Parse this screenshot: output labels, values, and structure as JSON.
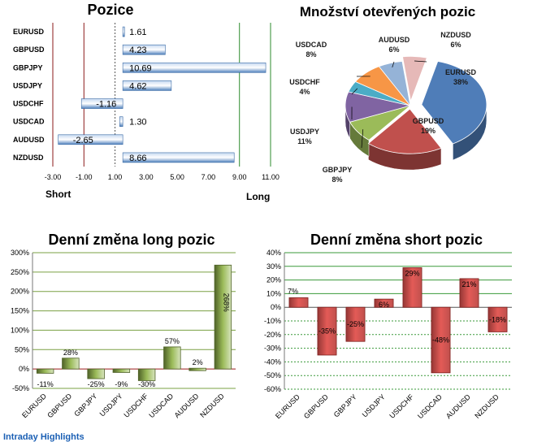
{
  "chart_data": [
    {
      "id": "pozice",
      "type": "bar",
      "orientation": "horizontal",
      "title": "Pozice",
      "categories": [
        "EURUSD",
        "GBPUSD",
        "GBPJPY",
        "USDJPY",
        "USDCHF",
        "USDCAD",
        "AUDUSD",
        "NZDUSD"
      ],
      "values": [
        1.61,
        4.23,
        10.69,
        4.62,
        -1.16,
        1.3,
        -2.65,
        8.66
      ],
      "value_labels": [
        "1.61",
        "4.23",
        "10.69",
        "4.62",
        "-1.16",
        "1.30",
        "-2.65",
        "8.66"
      ],
      "xticks": [
        -3,
        -1,
        1,
        3,
        5,
        7,
        9,
        11
      ],
      "xtick_labels": [
        "-3.00",
        "-1.00",
        "1.00",
        "3.00",
        "5.00",
        "7.00",
        "9.00",
        "11.00"
      ],
      "xlim": [
        -3,
        11
      ],
      "short_label": "Short",
      "long_label": "Long",
      "color": "#4f81bd"
    },
    {
      "id": "mnozstvi",
      "type": "pie",
      "title": "Množství otevřených pozic",
      "slices": [
        {
          "label": "EURUSD",
          "pct": "38%",
          "value": 38,
          "color": "#4f7db8"
        },
        {
          "label": "GBPUSD",
          "pct": "19%",
          "value": 19,
          "color": "#c0504d"
        },
        {
          "label": "GBPJPY",
          "pct": "8%",
          "value": 8,
          "color": "#9bbb59"
        },
        {
          "label": "USDJPY",
          "pct": "11%",
          "value": 11,
          "color": "#8064a2"
        },
        {
          "label": "USDCHF",
          "pct": "4%",
          "value": 4,
          "color": "#4bacc6"
        },
        {
          "label": "USDCAD",
          "pct": "8%",
          "value": 8,
          "color": "#f79646"
        },
        {
          "label": "AUDUSD",
          "pct": "6%",
          "value": 6,
          "color": "#95b3d7"
        },
        {
          "label": "NZDUSD",
          "pct": "6%",
          "value": 6,
          "color": "#e6b9b8"
        }
      ]
    },
    {
      "id": "long",
      "type": "bar",
      "title": "Denní změna long pozic",
      "categories": [
        "EURUSD",
        "GBPUSD",
        "GBPJPY",
        "USDJPY",
        "USDCHF",
        "USDCAD",
        "AUDUSD",
        "NZDUSD"
      ],
      "values": [
        -11,
        28,
        -25,
        -9,
        -30,
        57,
        2,
        268
      ],
      "value_labels": [
        "-11%",
        "28%",
        "-25%",
        "-9%",
        "-30%",
        "57%",
        "2%",
        "268%"
      ],
      "yticks": [
        -50,
        0,
        50,
        100,
        150,
        200,
        250,
        300
      ],
      "ytick_labels": [
        "-50%",
        "0%",
        "50%",
        "100%",
        "150%",
        "200%",
        "250%",
        "300%"
      ],
      "ylim": [
        -50,
        300
      ],
      "color": "#77933c"
    },
    {
      "id": "short",
      "type": "bar",
      "title": "Denní změna short pozic",
      "categories": [
        "EURUSD",
        "GBPUSD",
        "GBPJPY",
        "USDJPY",
        "USDCHF",
        "USDCAD",
        "AUDUSD",
        "NZDUSD"
      ],
      "values": [
        7,
        -35,
        -25,
        6,
        29,
        -48,
        21,
        -18
      ],
      "value_labels": [
        "7%",
        "-35%",
        "-25%",
        "6%",
        "29%",
        "-48%",
        "21%",
        "-18%"
      ],
      "yticks": [
        -60,
        -50,
        -40,
        -30,
        -20,
        -10,
        0,
        10,
        20,
        30,
        40
      ],
      "ytick_labels": [
        "-60%",
        "-50%",
        "-40%",
        "-30%",
        "-20%",
        "-10%",
        "0%",
        "10%",
        "20%",
        "30%",
        "40%"
      ],
      "ylim": [
        -60,
        40
      ],
      "color": "#c0504d"
    }
  ],
  "footer_text": "Intraday Highlights"
}
